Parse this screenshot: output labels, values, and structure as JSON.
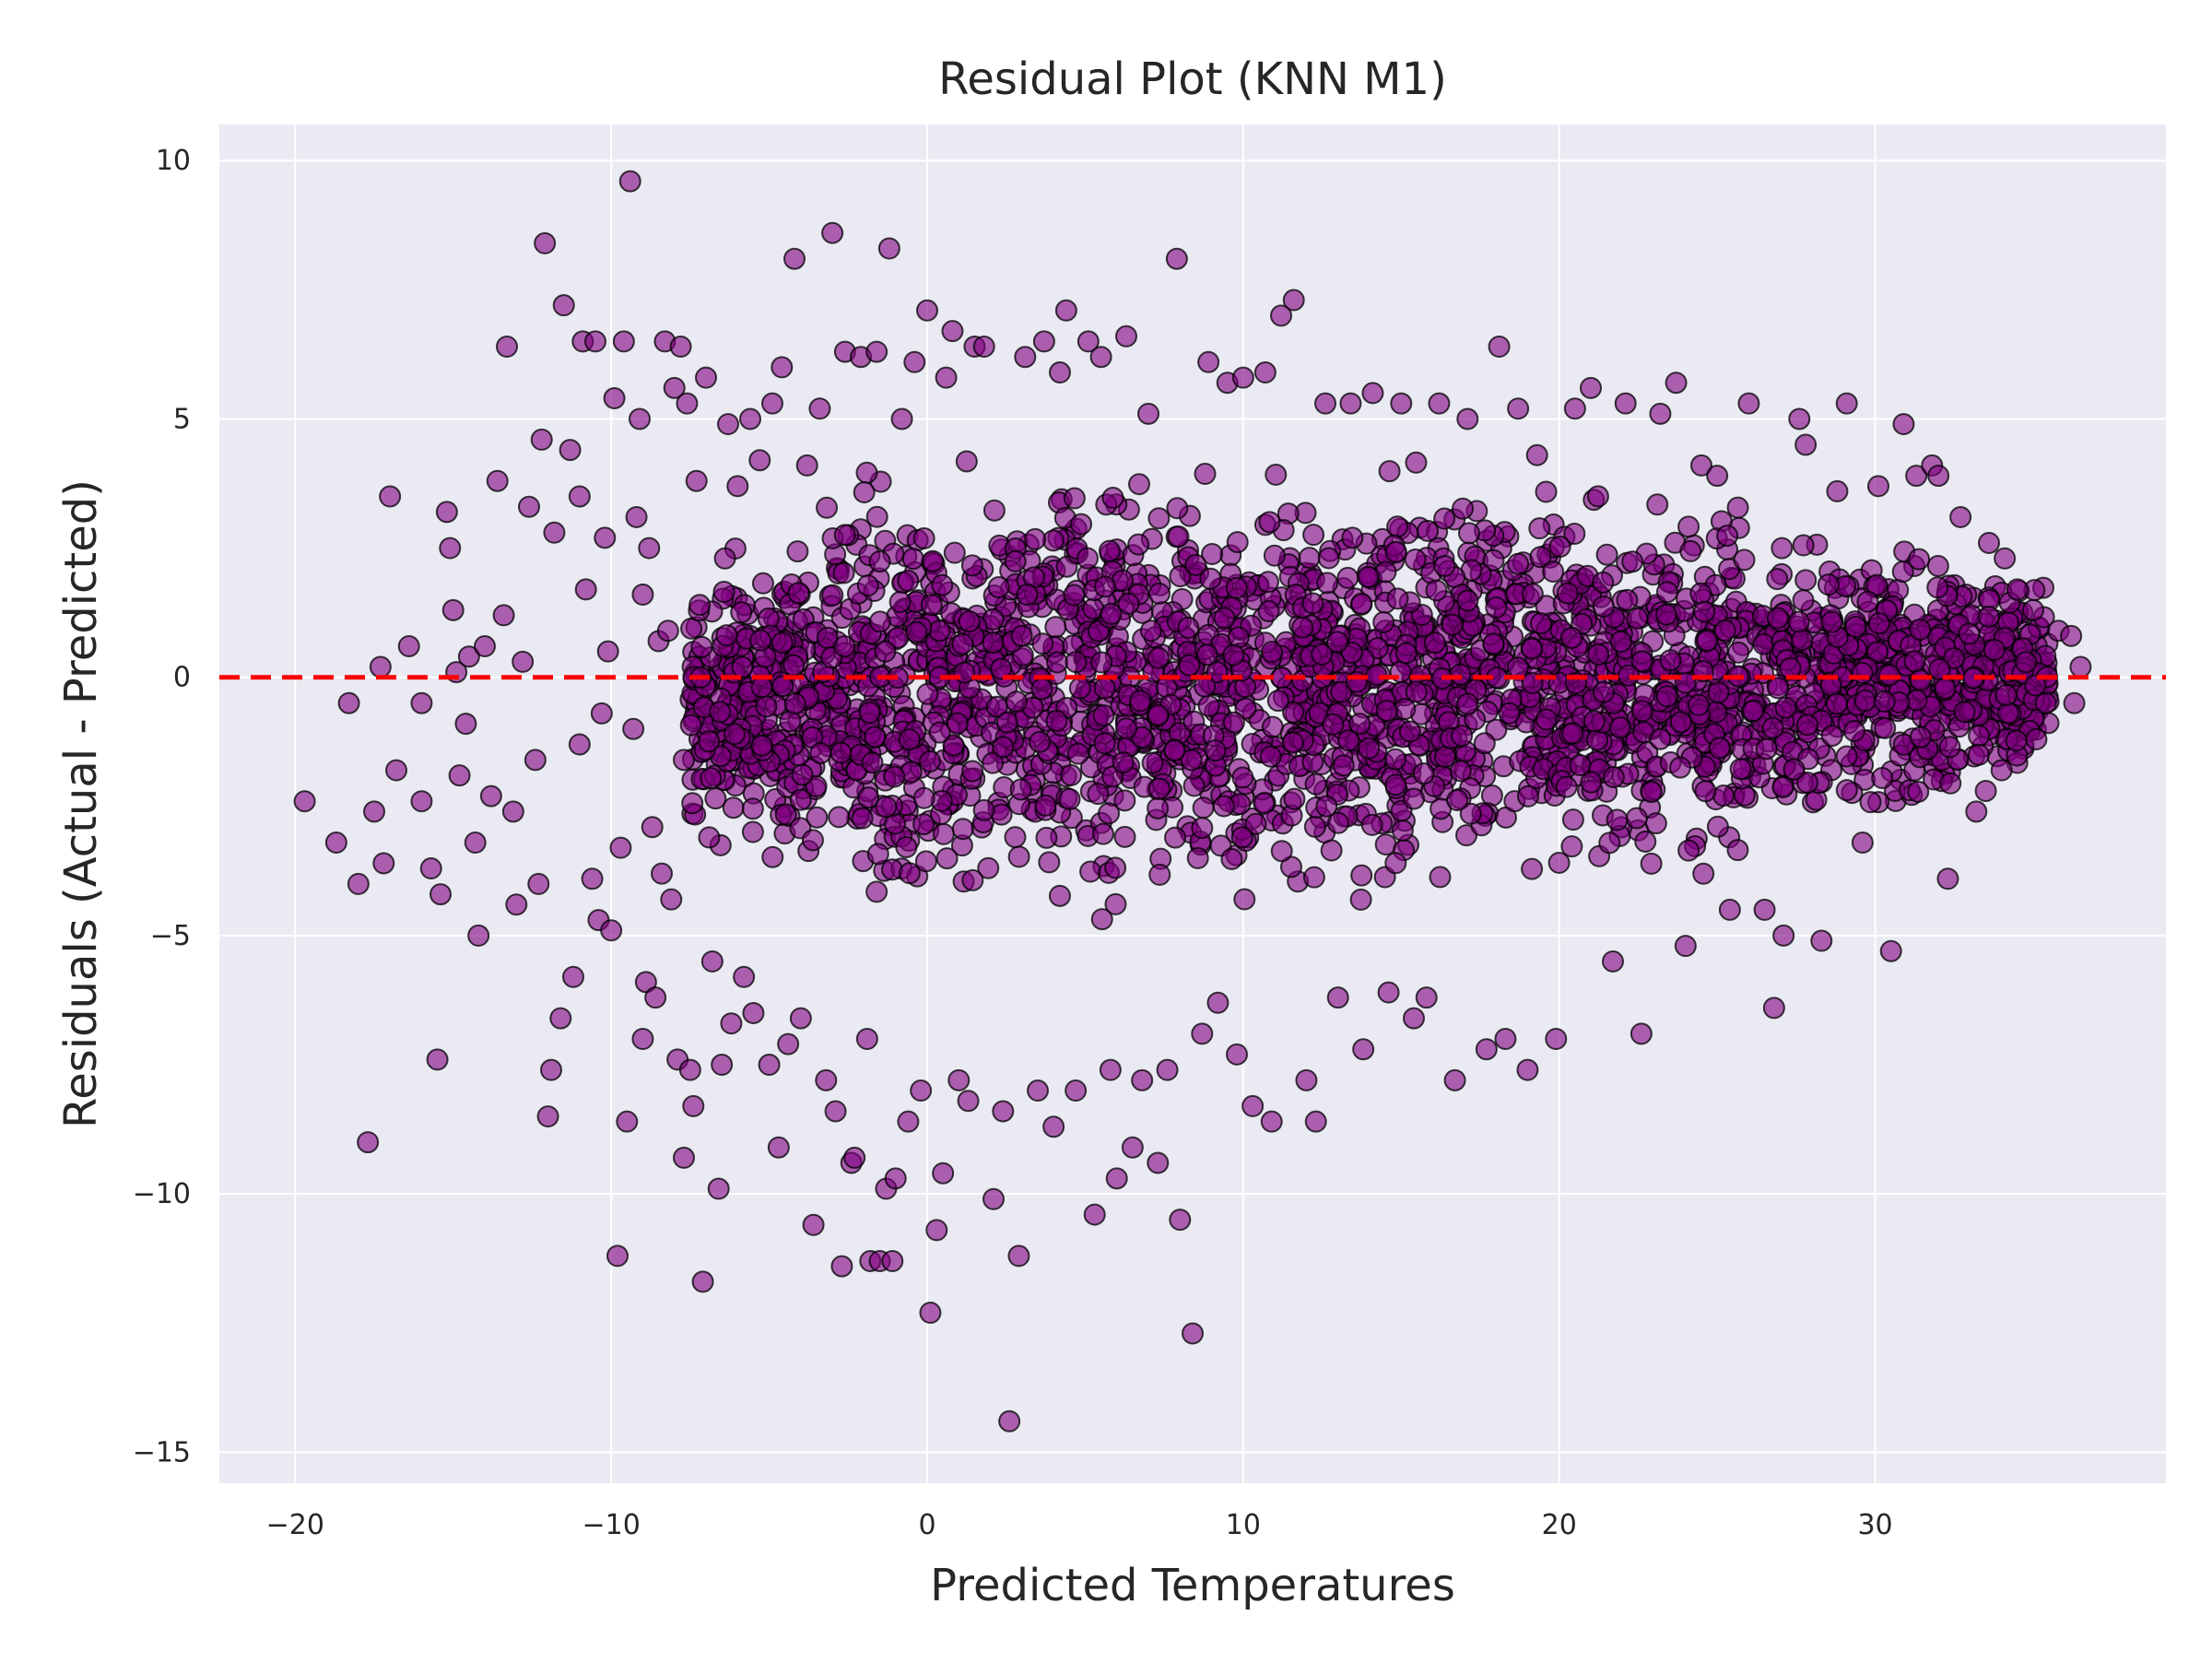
{
  "chart_data": {
    "type": "scatter",
    "title": "Residual Plot (KNN M1)",
    "xlabel": "Predicted Temperatures",
    "ylabel": "Residuals (Actual - Predicted)",
    "xlim": [
      -22.4,
      39.2
    ],
    "ylim": [
      -15.6,
      10.7
    ],
    "xticks": [
      -20,
      -10,
      0,
      10,
      20,
      30
    ],
    "yticks": [
      -15,
      -10,
      -5,
      0,
      5,
      10
    ],
    "xtick_labels": [
      "−20",
      "−10",
      "0",
      "10",
      "20",
      "30"
    ],
    "ytick_labels": [
      "−15",
      "−10",
      "−5",
      "0",
      "5",
      "10"
    ],
    "grid": true,
    "background_color": "#eaeaf2",
    "grid_color": "#ffffff",
    "marker": {
      "fill": "#800080",
      "edge": "#000000",
      "alpha": 0.6,
      "shape": "circle"
    },
    "reference_line": {
      "y": 0,
      "color": "#ff0000",
      "style": "dashed"
    },
    "density_core": {
      "note_count": "dense cloud",
      "x_range": [
        -7.5,
        35.5
      ],
      "upper_edge": [
        [
          -7.5,
          2.0
        ],
        [
          -2,
          4.5
        ],
        [
          5,
          5.0
        ],
        [
          10,
          4.8
        ],
        [
          16,
          4.7
        ],
        [
          20,
          4.2
        ],
        [
          25,
          3.8
        ],
        [
          30,
          3.2
        ],
        [
          35,
          2.0
        ]
      ],
      "lower_edge": [
        [
          -7.5,
          -3.5
        ],
        [
          -2,
          -5.0
        ],
        [
          5,
          -5.3
        ],
        [
          10,
          -5.2
        ],
        [
          16,
          -4.8
        ],
        [
          20,
          -4.5
        ],
        [
          25,
          -4.2
        ],
        [
          30,
          -3.5
        ],
        [
          35,
          -2.0
        ]
      ]
    },
    "points": [
      [
        -19.7,
        -2.4
      ],
      [
        -18.7,
        -3.2
      ],
      [
        -18.3,
        -0.5
      ],
      [
        -18.0,
        -4.0
      ],
      [
        -17.7,
        -9.0
      ],
      [
        -17.5,
        -2.6
      ],
      [
        -17.3,
        0.2
      ],
      [
        -17.2,
        -3.6
      ],
      [
        -17.0,
        3.5
      ],
      [
        -16.8,
        -1.8
      ],
      [
        -16.4,
        0.6
      ],
      [
        -16.0,
        -2.4
      ],
      [
        -15.7,
        -3.7
      ],
      [
        -15.5,
        -7.4
      ],
      [
        -15.4,
        -4.2
      ],
      [
        -15.2,
        3.2
      ],
      [
        -15.1,
        2.5
      ],
      [
        -15.0,
        1.3
      ],
      [
        -14.8,
        -1.9
      ],
      [
        -14.6,
        -0.9
      ],
      [
        -14.5,
        0.4
      ],
      [
        -14.3,
        -3.2
      ],
      [
        -14.2,
        -5.0
      ],
      [
        -14.0,
        0.6
      ],
      [
        -13.8,
        -2.3
      ],
      [
        -13.6,
        3.8
      ],
      [
        -13.4,
        1.2
      ],
      [
        -13.3,
        6.4
      ],
      [
        -13.0,
        -4.4
      ],
      [
        -12.8,
        0.3
      ],
      [
        -12.6,
        3.3
      ],
      [
        -12.4,
        -1.6
      ],
      [
        -12.2,
        4.6
      ],
      [
        -12.1,
        8.4
      ],
      [
        -12.0,
        -8.5
      ],
      [
        -11.9,
        -7.6
      ],
      [
        -11.8,
        2.8
      ],
      [
        -11.6,
        -6.6
      ],
      [
        -11.5,
        7.2
      ],
      [
        -11.3,
        4.4
      ],
      [
        -11.2,
        -5.8
      ],
      [
        -11.0,
        3.5
      ],
      [
        -10.9,
        6.5
      ],
      [
        -10.8,
        1.7
      ],
      [
        -10.6,
        -3.9
      ],
      [
        -10.5,
        6.5
      ],
      [
        -10.4,
        -4.7
      ],
      [
        -10.2,
        2.7
      ],
      [
        -10.1,
        0.5
      ],
      [
        -10.0,
        -4.9
      ],
      [
        -9.9,
        5.4
      ],
      [
        -9.8,
        -11.2
      ],
      [
        -9.7,
        -3.3
      ],
      [
        -9.6,
        6.5
      ],
      [
        -9.5,
        -8.6
      ],
      [
        -9.4,
        9.6
      ],
      [
        -9.3,
        -1.0
      ],
      [
        -9.2,
        3.1
      ],
      [
        -9.1,
        5.0
      ],
      [
        -9.0,
        -7.0
      ],
      [
        -8.9,
        -5.9
      ],
      [
        -8.8,
        2.5
      ],
      [
        -8.6,
        -6.2
      ],
      [
        -8.5,
        0.7
      ],
      [
        -8.4,
        -3.8
      ],
      [
        -8.3,
        6.5
      ],
      [
        -8.1,
        -4.3
      ],
      [
        -8.0,
        5.6
      ],
      [
        -7.9,
        -7.4
      ],
      [
        -7.8,
        6.4
      ],
      [
        -7.7,
        -9.3
      ],
      [
        -7.6,
        5.3
      ],
      [
        -7.5,
        -7.6
      ],
      [
        -7.4,
        -8.3
      ],
      [
        -7.3,
        3.8
      ],
      [
        -7.1,
        -11.7
      ],
      [
        -7.0,
        5.8
      ],
      [
        -6.8,
        -5.5
      ],
      [
        -6.6,
        -9.9
      ],
      [
        -6.5,
        -7.5
      ],
      [
        -6.3,
        4.9
      ],
      [
        -6.2,
        -6.7
      ],
      [
        -6.0,
        3.7
      ],
      [
        -5.8,
        -5.8
      ],
      [
        -5.6,
        5.0
      ],
      [
        -5.5,
        -6.5
      ],
      [
        -5.3,
        4.2
      ],
      [
        -5.0,
        -7.5
      ],
      [
        -4.9,
        5.3
      ],
      [
        -4.7,
        -9.1
      ],
      [
        -4.6,
        6.0
      ],
      [
        -4.4,
        -7.1
      ],
      [
        -4.2,
        8.1
      ],
      [
        -4.0,
        -6.6
      ],
      [
        -3.8,
        4.1
      ],
      [
        -3.6,
        -10.6
      ],
      [
        -3.4,
        5.2
      ],
      [
        -3.2,
        -7.8
      ],
      [
        -3.0,
        8.6
      ],
      [
        -2.9,
        -8.4
      ],
      [
        -2.7,
        -11.4
      ],
      [
        -2.6,
        6.3
      ],
      [
        -2.4,
        -9.4
      ],
      [
        -2.3,
        -9.3
      ],
      [
        -2.1,
        6.2
      ],
      [
        -1.9,
        -7.0
      ],
      [
        -1.8,
        -11.3
      ],
      [
        -1.6,
        6.3
      ],
      [
        -1.5,
        -11.3
      ],
      [
        -1.3,
        -9.9
      ],
      [
        -1.2,
        8.3
      ],
      [
        -1.1,
        -11.3
      ],
      [
        -1.0,
        -9.7
      ],
      [
        -0.8,
        5.0
      ],
      [
        -0.6,
        -8.6
      ],
      [
        -0.4,
        6.1
      ],
      [
        -0.2,
        -8.0
      ],
      [
        0.0,
        7.1
      ],
      [
        0.1,
        -12.3
      ],
      [
        0.3,
        -10.7
      ],
      [
        0.5,
        -9.6
      ],
      [
        0.6,
        5.8
      ],
      [
        0.8,
        6.7
      ],
      [
        1.0,
        -7.8
      ],
      [
        1.3,
        -8.2
      ],
      [
        1.5,
        6.4
      ],
      [
        1.8,
        6.4
      ],
      [
        2.1,
        -10.1
      ],
      [
        2.4,
        -8.4
      ],
      [
        2.6,
        -14.4
      ],
      [
        2.9,
        -11.2
      ],
      [
        3.1,
        6.2
      ],
      [
        3.5,
        -8.0
      ],
      [
        3.7,
        6.5
      ],
      [
        4.0,
        -8.7
      ],
      [
        4.2,
        5.9
      ],
      [
        4.4,
        7.1
      ],
      [
        4.7,
        -8.0
      ],
      [
        5.1,
        6.5
      ],
      [
        5.3,
        -10.4
      ],
      [
        5.5,
        6.2
      ],
      [
        5.8,
        -7.6
      ],
      [
        6.0,
        -9.7
      ],
      [
        6.3,
        6.6
      ],
      [
        6.5,
        -9.1
      ],
      [
        6.8,
        -7.8
      ],
      [
        7.0,
        5.1
      ],
      [
        7.3,
        -9.4
      ],
      [
        7.6,
        -7.6
      ],
      [
        7.9,
        8.1
      ],
      [
        8.0,
        -10.5
      ],
      [
        8.4,
        -12.7
      ],
      [
        8.7,
        -6.9
      ],
      [
        8.9,
        6.1
      ],
      [
        9.2,
        -6.3
      ],
      [
        9.5,
        5.7
      ],
      [
        9.8,
        -7.3
      ],
      [
        10.0,
        5.8
      ],
      [
        10.3,
        -8.3
      ],
      [
        10.7,
        5.9
      ],
      [
        10.9,
        -8.6
      ],
      [
        11.2,
        7.0
      ],
      [
        11.6,
        7.3
      ],
      [
        12.0,
        -7.8
      ],
      [
        12.3,
        -8.6
      ],
      [
        12.6,
        5.3
      ],
      [
        13.0,
        -6.2
      ],
      [
        13.4,
        5.3
      ],
      [
        13.8,
        -7.2
      ],
      [
        14.1,
        5.5
      ],
      [
        14.6,
        -6.1
      ],
      [
        15.0,
        5.3
      ],
      [
        15.4,
        -6.6
      ],
      [
        15.8,
        -6.2
      ],
      [
        16.2,
        5.3
      ],
      [
        16.7,
        -7.8
      ],
      [
        17.1,
        5.0
      ],
      [
        17.7,
        -7.2
      ],
      [
        18.1,
        6.4
      ],
      [
        18.3,
        -7.0
      ],
      [
        18.7,
        5.2
      ],
      [
        19.0,
        -7.6
      ],
      [
        19.3,
        4.3
      ],
      [
        19.9,
        -7.0
      ],
      [
        20.5,
        5.2
      ],
      [
        21.0,
        5.6
      ],
      [
        21.7,
        -5.5
      ],
      [
        22.1,
        5.3
      ],
      [
        22.6,
        -6.9
      ],
      [
        23.2,
        5.1
      ],
      [
        23.7,
        5.7
      ],
      [
        24.0,
        -5.2
      ],
      [
        24.5,
        4.1
      ],
      [
        25.0,
        3.9
      ],
      [
        25.4,
        -4.5
      ],
      [
        26.0,
        5.3
      ],
      [
        26.5,
        -4.5
      ],
      [
        26.8,
        -6.4
      ],
      [
        27.1,
        -5.0
      ],
      [
        27.6,
        5.0
      ],
      [
        27.8,
        4.5
      ],
      [
        28.3,
        -5.1
      ],
      [
        28.8,
        3.6
      ],
      [
        29.1,
        5.3
      ],
      [
        29.6,
        -3.2
      ],
      [
        30.1,
        3.7
      ],
      [
        30.5,
        -5.3
      ],
      [
        30.9,
        4.9
      ],
      [
        31.3,
        3.9
      ],
      [
        31.8,
        4.1
      ],
      [
        32.0,
        3.9
      ],
      [
        32.3,
        -3.9
      ],
      [
        32.7,
        3.1
      ],
      [
        33.2,
        -2.6
      ],
      [
        33.6,
        2.6
      ],
      [
        34.1,
        2.3
      ],
      [
        34.5,
        1.7
      ],
      [
        35.0,
        1.3
      ],
      [
        35.4,
        -0.5
      ],
      [
        35.8,
        0.9
      ],
      [
        36.2,
        0.8
      ],
      [
        36.5,
        0.2
      ],
      [
        36.3,
        -0.5
      ],
      [
        35.1,
        -1.2
      ],
      [
        34.0,
        -1.8
      ],
      [
        33.5,
        -2.2
      ],
      [
        -16.0,
        -0.5
      ],
      [
        -14.9,
        0.1
      ],
      [
        -13.1,
        -2.6
      ],
      [
        -12.3,
        -4.0
      ],
      [
        -11.0,
        -1.3
      ],
      [
        -10.3,
        -0.7
      ],
      [
        -9.0,
        1.6
      ],
      [
        -8.7,
        -2.9
      ],
      [
        -8.2,
        0.9
      ],
      [
        -7.7,
        -1.6
      ],
      [
        -7.2,
        1.4
      ],
      [
        -6.9,
        -3.1
      ],
      [
        -6.4,
        2.3
      ],
      [
        -6.1,
        -1.1
      ]
    ]
  }
}
